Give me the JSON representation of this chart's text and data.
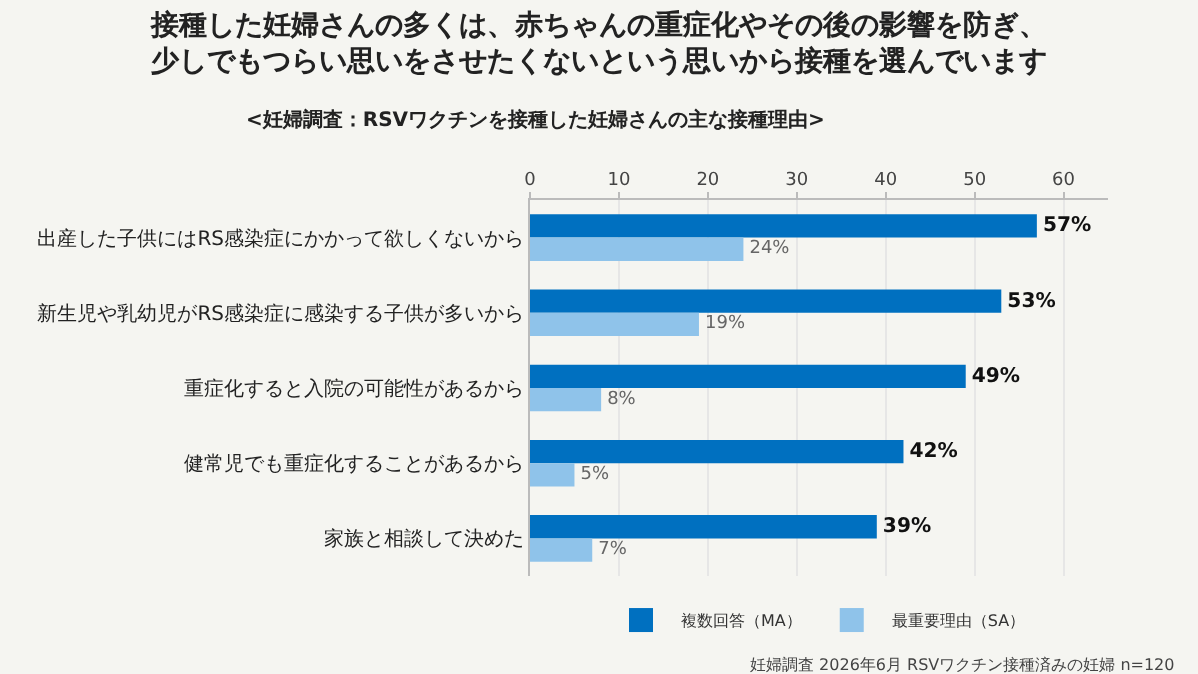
{
  "chart_data": {
    "type": "bar",
    "orientation": "horizontal",
    "title": "接種した妊婦さんの多くは、赤ちゃんの重症化やその後の影響を防ぎ、少しでもつらい思いをさせたくないという思いから接種を選んでいます",
    "subtitle": "<妊婦調査：RSVワクチンを接種した妊婦さんの主な接種理由>",
    "categories": [
      "出産した子供にはRS感染症にかかって欲しくないから",
      "新生児や乳幼児がRS感染症に感染する子供が多いから",
      "重症化すると入院の可能性があるから",
      "健常児でも重症化することがあるから",
      "家族と相談して決めた"
    ],
    "series": [
      {
        "name": "複数回答（MA）",
        "color": "#0070c0",
        "values": [
          57,
          53,
          49,
          42,
          39
        ],
        "value_labels": [
          "57%",
          "53%",
          "49%",
          "42%",
          "39%"
        ]
      },
      {
        "name": "最重要理由（SA）",
        "color": "#8fc3ea",
        "values": [
          24,
          19,
          8,
          5,
          7
        ],
        "value_labels": [
          "24%",
          "19%",
          "8%",
          "5%",
          "7%"
        ]
      }
    ],
    "xlim": [
      0,
      65
    ],
    "xticks": [
      0,
      10,
      20,
      30,
      40,
      50,
      60
    ],
    "grid": "x",
    "legend": "bottom",
    "annotations": [
      "妊婦調査 2026年6月 RSVワクチン接種済みの妊婦 n=120"
    ]
  }
}
